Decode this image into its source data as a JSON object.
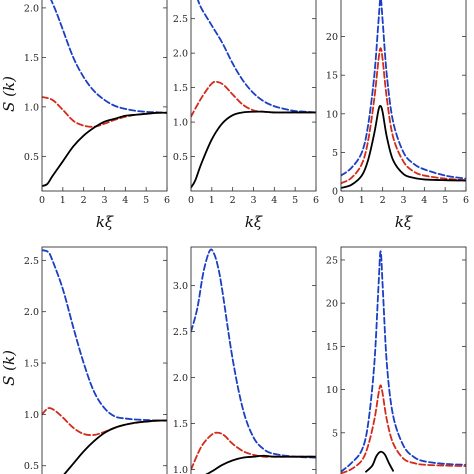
{
  "colors": {
    "blue": "#1a3fc4",
    "red": "#d42a1a",
    "black": "#000000"
  },
  "chart_data": [
    {
      "type": "line",
      "ylabel": "S (k)",
      "xlabel": "kξ",
      "xlim": [
        0,
        6
      ],
      "ylim": [
        0.15,
        2.1
      ],
      "xticks": [
        "0",
        "1",
        "2",
        "3",
        "4",
        "5",
        "6"
      ],
      "yticks": [
        "0.5",
        "1.0",
        "1.5",
        "2.0"
      ],
      "series": [
        {
          "color": "blue",
          "style": "dashed",
          "x": [
            0.4,
            0.7,
            1.0,
            1.5,
            2.0,
            2.5,
            3.0,
            3.5,
            4.0,
            4.5,
            5.0,
            5.5,
            6.0
          ],
          "values": [
            2.1,
            1.95,
            1.78,
            1.5,
            1.3,
            1.16,
            1.07,
            1.01,
            0.98,
            0.96,
            0.95,
            0.945,
            0.94
          ]
        },
        {
          "color": "red",
          "style": "dashed",
          "x": [
            0,
            0.5,
            1.0,
            1.5,
            2.0,
            2.5,
            3.0,
            3.5,
            4.0,
            4.5,
            5.0,
            5.5,
            6.0
          ],
          "values": [
            1.1,
            1.07,
            0.97,
            0.86,
            0.81,
            0.8,
            0.83,
            0.87,
            0.9,
            0.92,
            0.93,
            0.94,
            0.94
          ]
        },
        {
          "color": "black",
          "style": "solid",
          "x": [
            0,
            0.25,
            0.5,
            1.0,
            1.5,
            2.0,
            2.5,
            3.0,
            3.5,
            4.0,
            4.5,
            5.0,
            5.5,
            6.0
          ],
          "values": [
            0.2,
            0.22,
            0.3,
            0.45,
            0.6,
            0.71,
            0.79,
            0.85,
            0.88,
            0.91,
            0.92,
            0.93,
            0.94,
            0.94
          ]
        }
      ]
    },
    {
      "type": "line",
      "ylabel": "",
      "xlabel": "kξ",
      "xlim": [
        0,
        6
      ],
      "ylim": [
        0,
        2.8
      ],
      "xticks": [
        "0",
        "1",
        "2",
        "3",
        "4",
        "5",
        "6"
      ],
      "yticks": [
        "0.5",
        "1.0",
        "1.5",
        "2.0",
        "2.5"
      ],
      "series": [
        {
          "color": "blue",
          "style": "dashed",
          "x": [
            0.3,
            0.5,
            1.0,
            1.5,
            2.0,
            2.5,
            3.0,
            3.5,
            4.0,
            4.5,
            5.0,
            5.5,
            6.0
          ],
          "values": [
            2.8,
            2.65,
            2.4,
            2.15,
            1.85,
            1.6,
            1.42,
            1.3,
            1.23,
            1.19,
            1.16,
            1.15,
            1.14
          ]
        },
        {
          "color": "red",
          "style": "dashed",
          "x": [
            0,
            0.5,
            1.0,
            1.3,
            1.6,
            2.0,
            2.5,
            3.0,
            3.5,
            4.0,
            5.0,
            6.0
          ],
          "values": [
            1.08,
            1.35,
            1.56,
            1.58,
            1.53,
            1.4,
            1.25,
            1.17,
            1.15,
            1.14,
            1.14,
            1.14
          ]
        },
        {
          "color": "black",
          "style": "solid",
          "x": [
            0,
            0.2,
            0.5,
            1.0,
            1.5,
            2.0,
            2.5,
            3.0,
            3.5,
            4.0,
            5.0,
            6.0
          ],
          "values": [
            0.05,
            0.15,
            0.4,
            0.75,
            0.98,
            1.1,
            1.14,
            1.15,
            1.15,
            1.14,
            1.14,
            1.14
          ]
        }
      ]
    },
    {
      "type": "line",
      "ylabel": "",
      "xlabel": "kξ",
      "xlim": [
        0,
        6
      ],
      "ylim": [
        0,
        25
      ],
      "xticks": [
        "0",
        "1",
        "2",
        "3",
        "4",
        "5",
        "6"
      ],
      "yticks": [
        "0",
        "5",
        "10",
        "15",
        "20"
      ],
      "series": [
        {
          "color": "blue",
          "style": "dashed",
          "x": [
            0,
            0.5,
            1.0,
            1.3,
            1.6,
            1.8,
            1.9,
            2.0,
            2.2,
            2.5,
            3.0,
            3.5,
            4.0,
            5.0,
            6.0
          ],
          "values": [
            2,
            3,
            5,
            8.5,
            15,
            22,
            25,
            22,
            15,
            9,
            5,
            3.5,
            2.8,
            2,
            1.6
          ]
        },
        {
          "color": "red",
          "style": "dashed",
          "x": [
            0,
            0.5,
            1.0,
            1.3,
            1.6,
            1.8,
            1.9,
            2.0,
            2.2,
            2.5,
            3.0,
            3.5,
            4.0,
            5.0,
            6.0
          ],
          "values": [
            1,
            1.7,
            3.5,
            6.5,
            12,
            17,
            18.5,
            17,
            12,
            7,
            3.8,
            2.5,
            2,
            1.6,
            1.4
          ]
        },
        {
          "color": "black",
          "style": "solid",
          "x": [
            0,
            0.5,
            1.0,
            1.3,
            1.6,
            1.8,
            1.9,
            2.0,
            2.2,
            2.5,
            3.0,
            3.5,
            4.0,
            5.0,
            6.0
          ],
          "values": [
            0.4,
            0.8,
            2,
            4,
            7.5,
            10.5,
            11,
            10.2,
            7,
            4,
            2.2,
            1.7,
            1.5,
            1.4,
            1.35
          ]
        }
      ]
    },
    {
      "type": "line",
      "ylabel": "S (k)",
      "xlabel": "",
      "xlim": [
        0,
        6
      ],
      "ylim": [
        0.4,
        2.63
      ],
      "xticks": [],
      "yticks": [
        "0.5",
        "1.0",
        "1.5",
        "2.0",
        "2.5"
      ],
      "series": [
        {
          "color": "blue",
          "style": "dashed",
          "x": [
            0,
            0.3,
            0.5,
            1.0,
            1.5,
            2.0,
            2.5,
            3.0,
            3.5,
            4.0,
            4.5,
            5.0,
            5.5,
            6.0
          ],
          "values": [
            2.6,
            2.58,
            2.5,
            2.22,
            1.85,
            1.5,
            1.22,
            1.06,
            0.98,
            0.96,
            0.95,
            0.945,
            0.94,
            0.94
          ]
        },
        {
          "color": "red",
          "style": "dashed",
          "x": [
            0,
            0.3,
            0.6,
            1.0,
            1.5,
            2.0,
            2.5,
            3.0,
            3.5,
            4.0,
            5.0,
            6.0
          ],
          "values": [
            1.0,
            1.06,
            1.04,
            0.97,
            0.87,
            0.81,
            0.8,
            0.83,
            0.87,
            0.9,
            0.93,
            0.94
          ]
        },
        {
          "color": "black",
          "style": "solid",
          "x": [
            1.0,
            1.5,
            2.0,
            2.5,
            3.0,
            3.5,
            4.0,
            4.5,
            5.0,
            5.5,
            6.0
          ],
          "values": [
            0.4,
            0.52,
            0.64,
            0.74,
            0.82,
            0.87,
            0.9,
            0.92,
            0.93,
            0.94,
            0.94
          ]
        }
      ]
    },
    {
      "type": "line",
      "ylabel": "",
      "xlabel": "",
      "xlim": [
        0,
        6
      ],
      "ylim": [
        0.93,
        3.42
      ],
      "xticks": [],
      "yticks": [
        "1.0",
        "1.5",
        "2.0",
        "2.5",
        "3.0"
      ],
      "series": [
        {
          "color": "blue",
          "style": "dashed",
          "x": [
            0,
            0.3,
            0.6,
            0.9,
            1.1,
            1.3,
            1.5,
            2.0,
            2.5,
            3.0,
            3.5,
            4.0,
            5.0,
            6.0
          ],
          "values": [
            2.5,
            2.75,
            3.15,
            3.38,
            3.35,
            3.2,
            2.95,
            2.2,
            1.65,
            1.35,
            1.22,
            1.17,
            1.14,
            1.13
          ]
        },
        {
          "color": "red",
          "style": "dashed",
          "x": [
            0,
            0.5,
            1.0,
            1.3,
            1.6,
            2.0,
            2.5,
            3.0,
            3.5,
            4.0,
            5.0,
            6.0
          ],
          "values": [
            1.0,
            1.25,
            1.38,
            1.4,
            1.37,
            1.28,
            1.2,
            1.16,
            1.14,
            1.14,
            1.14,
            1.14
          ]
        },
        {
          "color": "black",
          "style": "solid",
          "x": [
            0.6,
            1.0,
            1.5,
            2.0,
            2.5,
            3.0,
            3.5,
            4.0,
            5.0,
            6.0
          ],
          "values": [
            0.93,
            0.98,
            1.05,
            1.1,
            1.13,
            1.14,
            1.15,
            1.14,
            1.14,
            1.14
          ]
        }
      ]
    },
    {
      "type": "line",
      "ylabel": "",
      "xlabel": "",
      "xlim": [
        0,
        6
      ],
      "ylim": [
        0,
        26.5
      ],
      "xticks": [],
      "yticks": [
        "5",
        "10",
        "15",
        "20",
        "25"
      ],
      "series": [
        {
          "color": "blue",
          "style": "dashed",
          "x": [
            0,
            0.5,
            1.0,
            1.3,
            1.6,
            1.8,
            1.9,
            2.0,
            2.2,
            2.5,
            3.0,
            3.5,
            4.0,
            5.0,
            6.0
          ],
          "values": [
            0.5,
            1.5,
            3,
            6,
            13,
            22,
            26,
            22,
            13,
            7,
            3.5,
            2.2,
            1.7,
            1.4,
            1.3
          ]
        },
        {
          "color": "red",
          "style": "dashed",
          "x": [
            0,
            0.5,
            1.0,
            1.3,
            1.6,
            1.8,
            1.9,
            2.0,
            2.2,
            2.5,
            3.0,
            3.5,
            4.0,
            5.0,
            6.0
          ],
          "values": [
            0.3,
            0.8,
            1.8,
            3.5,
            6.5,
            9.5,
            10.5,
            9.5,
            6.5,
            3.8,
            2,
            1.5,
            1.3,
            1.2,
            1.15
          ]
        },
        {
          "color": "black",
          "style": "solid",
          "x": [
            1.2,
            1.5,
            1.7,
            1.9,
            2.1,
            2.3,
            2.5
          ],
          "values": [
            0.5,
            1.2,
            2.3,
            2.8,
            2.5,
            1.5,
            0.6
          ]
        }
      ]
    }
  ]
}
